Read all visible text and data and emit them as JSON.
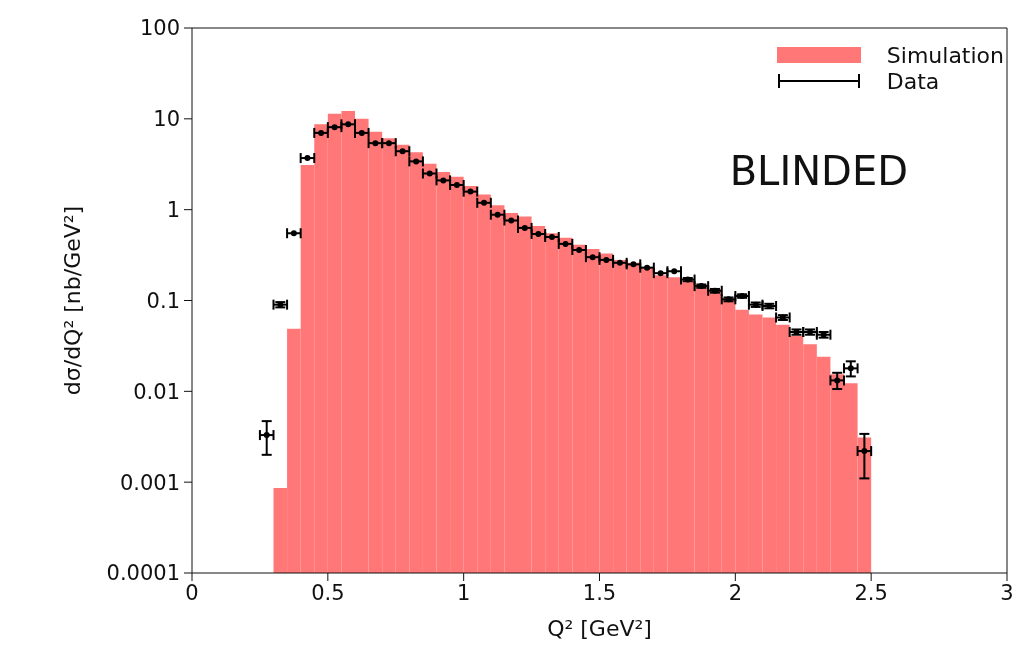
{
  "chart_data": {
    "type": "histogram",
    "xlabel": "Q² [GeV²]",
    "ylabel": "dσ/dQ² [nb/GeV²]",
    "annotations": [
      "BLINDED"
    ],
    "series": [
      {
        "name": "Simulation",
        "color": "#ff7777",
        "bins": [
          0.3,
          0.35,
          0.4,
          0.45,
          0.5,
          0.55,
          0.6,
          0.65,
          0.7,
          0.75,
          0.8,
          0.85,
          0.9,
          0.95,
          1.0,
          1.05,
          1.1,
          1.15,
          1.2,
          1.25,
          1.3,
          1.35,
          1.4,
          1.45,
          1.5,
          1.55,
          1.6,
          1.65,
          1.7,
          1.75,
          1.8,
          1.85,
          1.9,
          1.95,
          2.0,
          2.05,
          2.1,
          2.15,
          2.2,
          2.25,
          2.3,
          2.35,
          2.4,
          2.45,
          2.5
        ],
        "values": [
          0.00086,
          0.049,
          3.1,
          8.7,
          11.4,
          12.2,
          10.0,
          7.2,
          6.1,
          5.2,
          4.3,
          3.2,
          2.6,
          2.3,
          1.82,
          1.47,
          1.12,
          0.92,
          0.84,
          0.66,
          0.55,
          0.49,
          0.41,
          0.37,
          0.33,
          0.28,
          0.26,
          0.23,
          0.19,
          0.18,
          0.166,
          0.149,
          0.132,
          0.105,
          0.079,
          0.07,
          0.065,
          0.054,
          0.041,
          0.033,
          0.024,
          0.0154,
          0.0123,
          0.0031
        ]
      },
      {
        "name": "Data",
        "type": "scatter",
        "color": "#000000",
        "x": [
          0.275,
          0.325,
          0.375,
          0.425,
          0.475,
          0.525,
          0.575,
          0.625,
          0.675,
          0.725,
          0.775,
          0.825,
          0.875,
          0.925,
          0.975,
          1.025,
          1.075,
          1.125,
          1.175,
          1.225,
          1.275,
          1.325,
          1.375,
          1.425,
          1.475,
          1.525,
          1.575,
          1.625,
          1.675,
          1.725,
          1.775,
          1.825,
          1.875,
          1.925,
          1.975,
          2.025,
          2.075,
          2.125,
          2.175,
          2.225,
          2.275,
          2.325,
          2.375,
          2.425,
          2.475
        ],
        "values": [
          0.0033,
          0.09,
          0.55,
          3.7,
          7.0,
          8.1,
          8.7,
          7.0,
          5.4,
          5.4,
          4.4,
          3.4,
          2.5,
          2.1,
          1.87,
          1.58,
          1.19,
          0.88,
          0.76,
          0.63,
          0.54,
          0.5,
          0.42,
          0.36,
          0.3,
          0.28,
          0.26,
          0.25,
          0.23,
          0.2,
          0.21,
          0.17,
          0.144,
          0.128,
          0.103,
          0.112,
          0.09,
          0.087,
          0.065,
          0.045,
          0.045,
          0.042,
          0.0132,
          0.0179,
          0.0022
        ],
        "errors": [
          [
            0.002,
            0.0047
          ],
          0.006,
          null,
          null,
          null,
          null,
          null,
          null,
          null,
          null,
          null,
          null,
          null,
          null,
          null,
          null,
          null,
          null,
          null,
          null,
          null,
          null,
          null,
          null,
          null,
          null,
          null,
          null,
          null,
          null,
          null,
          0.007,
          0.006,
          0.006,
          0.005,
          0.005,
          0.005,
          0.005,
          0.004,
          0.003,
          0.003,
          0.003,
          [
            0.0106,
            0.016
          ],
          [
            0.0146,
            0.0214
          ],
          [
            0.0011,
            0.0034
          ]
        ],
        "xerrors": [
          0.025,
          0.025,
          0.025,
          0.025,
          0.025,
          0.025,
          0.025,
          0.025,
          0.025,
          0.025,
          0.025,
          0.025,
          0.025,
          0.025,
          0.025,
          0.025,
          0.025,
          0.025,
          0.025,
          0.025,
          0.025,
          0.025,
          0.025,
          0.025,
          0.025,
          0.025,
          0.025,
          0.025,
          0.025,
          0.025,
          0.025,
          0.025,
          0.025,
          0.025,
          0.025,
          0.025,
          0.025,
          0.025,
          0.025,
          0.025,
          0.025,
          0.025,
          0.025,
          0.025,
          0.025
        ]
      }
    ],
    "xlim": [
      0,
      3
    ],
    "xticks": [
      0,
      0.5,
      1,
      1.5,
      2,
      2.5,
      3
    ],
    "ylim": [
      0.0001,
      100
    ],
    "yticks": [
      0.0001,
      0.001,
      0.01,
      0.1,
      1,
      10,
      100
    ],
    "log": "y",
    "grid": false,
    "legend": "top right",
    "marker": "circle"
  }
}
